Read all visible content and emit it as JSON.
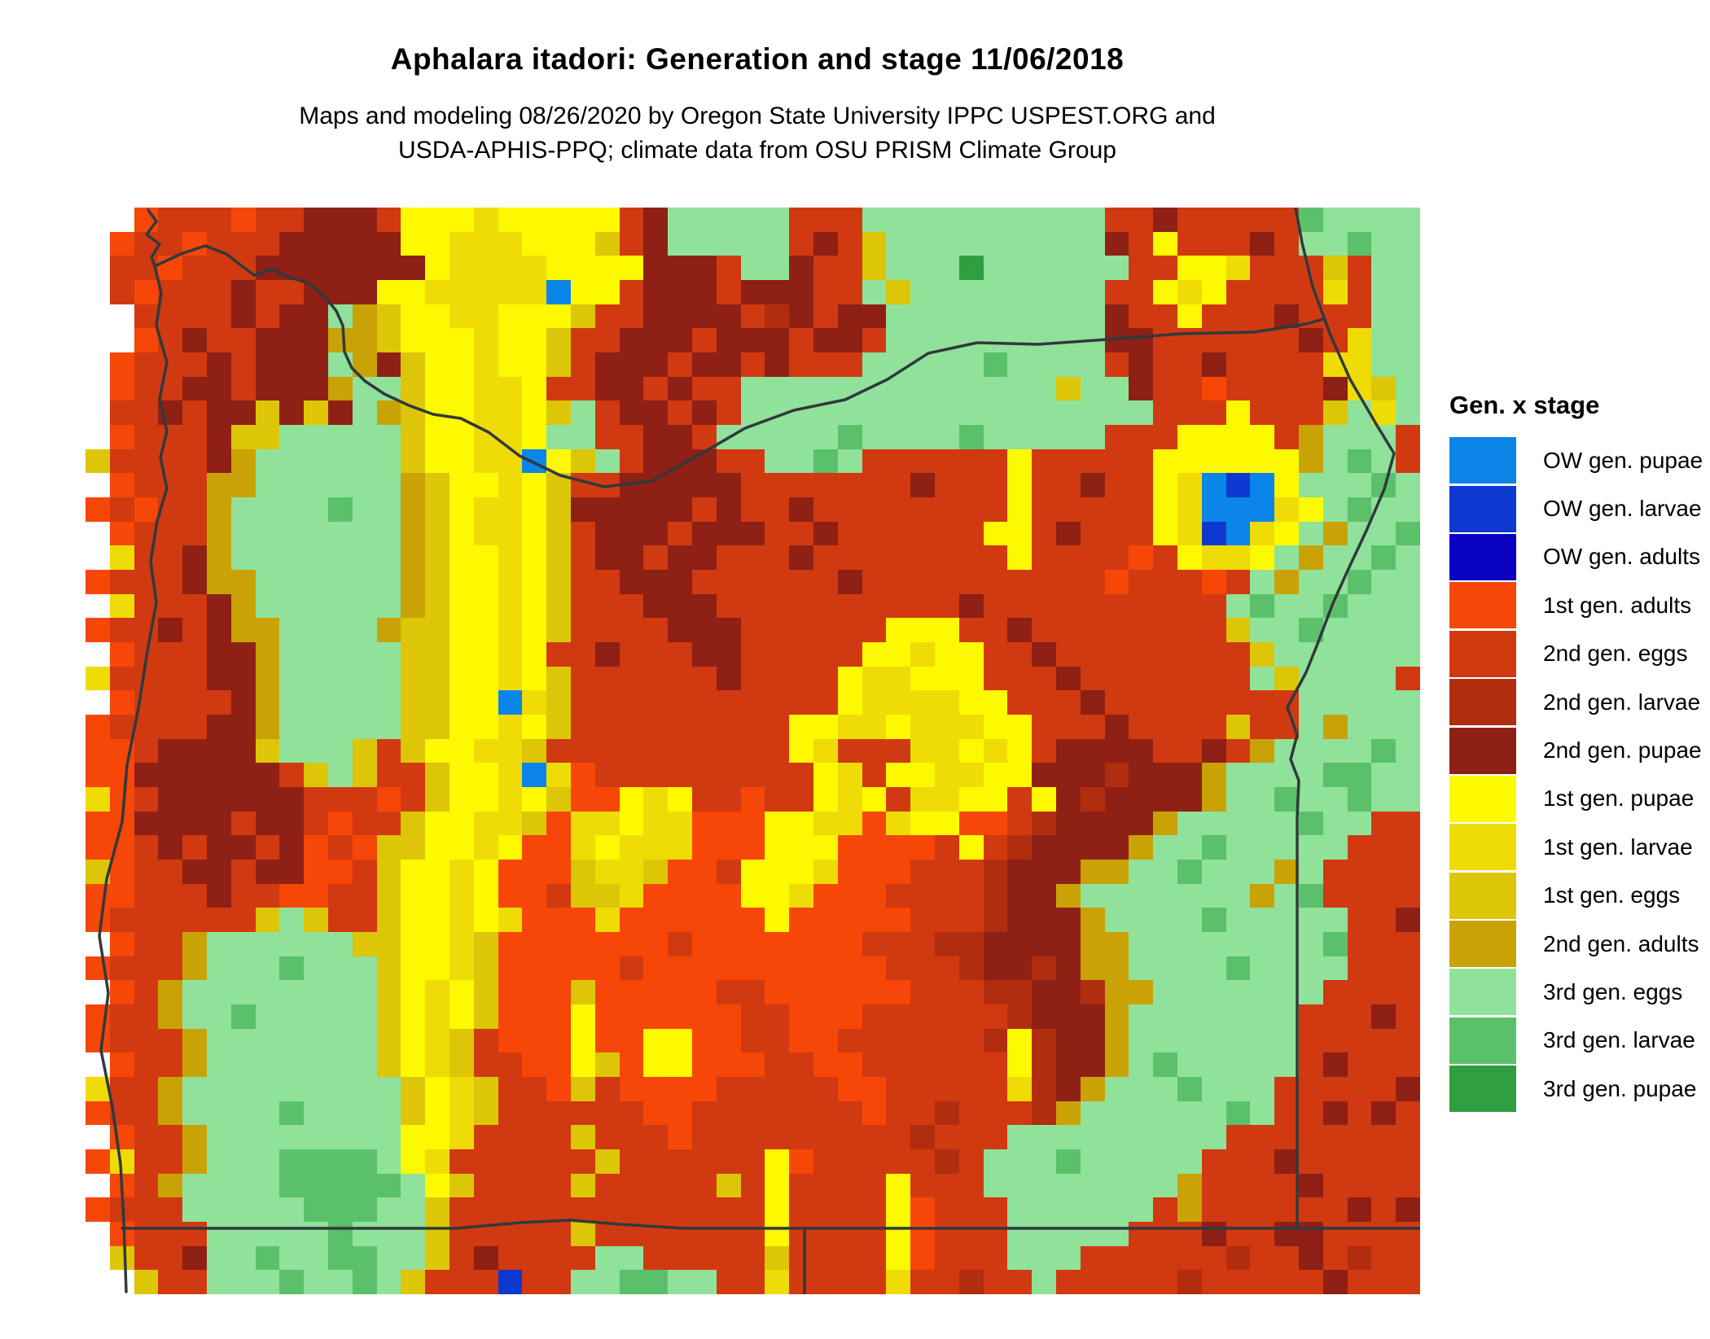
{
  "figure": {
    "title": "Aphalara itadori: Generation and stage 11/06/2018",
    "subtitle_line1": "Maps and modeling 08/26/2020 by Oregon State University IPPC USPEST.ORG and",
    "subtitle_line2": "USDA-APHIS-PPQ; climate data from OSU PRISM Climate Group"
  },
  "legend": {
    "title": "Gen. x stage",
    "items": [
      {
        "label": "OW gen. pupae",
        "code": "b"
      },
      {
        "label": "OW gen. larvae",
        "code": "B"
      },
      {
        "label": "OW gen. adults",
        "code": "N"
      },
      {
        "label": "1st gen. adults",
        "code": "o"
      },
      {
        "label": "2nd gen. eggs",
        "code": "e"
      },
      {
        "label": "2nd gen. larvae",
        "code": "r"
      },
      {
        "label": "2nd gen. pupae",
        "code": "d"
      },
      {
        "label": "1st gen. pupae",
        "code": "Y"
      },
      {
        "label": "1st gen. larvae",
        "code": "y"
      },
      {
        "label": "1st gen. eggs",
        "code": "g"
      },
      {
        "label": "2nd gen. adults",
        "code": "G"
      },
      {
        "label": "3rd gen. eggs",
        "code": "E"
      },
      {
        "label": "3rd gen. larvae",
        "code": "V"
      },
      {
        "label": "3rd gen. pupae",
        "code": "D"
      }
    ]
  },
  "map": {
    "palette": {
      "b": "#0c85e9",
      "B": "#0c3ad0",
      "N": "#0a02c2",
      "o": "#f64708",
      "e": "#d13910",
      "r": "#b12d10",
      "d": "#8e2015",
      "Y": "#fdf900",
      "y": "#efdc06",
      "g": "#dcc607",
      "G": "#c9a306",
      "E": "#90e29b",
      "V": "#5bc06a",
      "D": "#2f9e40",
      "W": "#ffffff"
    },
    "grid_cols": 55,
    "grid_rows": 45,
    "grid": [
      "WWoeeeoeedddeYYYyYYYYYedEEEEEeeeEEEEEEEEEEeedeeeeeVEEEE",
      "WoeeoeeedddddYYyyyYYYgedEEEEEedegEEEEEEEEEdeYeeedeEEVEE",
      "WeeoeeedddddddYyyyyYYYYdddeEEdeegEEEDEEEEEEeeYYyeeegeEEE",
      "WeoeeedeedddYYyyyyybYYedddedddeeEgEEEEEEEEeeYyYeeeeyeEE",
      "WWeeeededdEGgYYyyYYYgeeddddardeddEEEEEEEEEdeeYeeedeeeEE",
      "WWoedeedddGGgYYYyYYgeedddedddaddeEEEEEEEEEddeeeeeedeyEE",
      "WoeeededddEGdgYYyYYgedddeddedeeeEEEEEVEEEEedeedeeeeyyEE",
      "WoeeddedddGEEgYYyyYeaddedeeEEEEEEEEEEEEEgEEdeeoeeeedygEE",
      "WeededdgdgdEGgYYyyYgEeddedeEEEEEEEEEEEEEEEEEeeeYeeegEyEE",
      "WoeeedggEEEEEgYYyyYEEeeddeEEEEEVEEEEVEEEEEeeeYYYYeGEEEe",
      "geeeedGEEEEEEgYYyybYgEedddeeEEVEeeeeeeYeeeeeYYYYYYGEVEe",
      "WoeeeGGEEEEEEGgYYyYgeedddddeeeeeeedeeeYeedeeYybBbYEEEVE",
      "oeoeeGEEEEVEEGgYyyYgdddddedeedeeeeeeeeYeeeeeYybbbyYEVEE",
      "WoeeeGEEEEEEEGgYyyYgedddedddeedeeeeeeYYedeeeYyBbyYEGEEV",
      "WyeedGEEEEEEEGgYYyYgeddeddeeedeeeeeeeeYeeeeoeYyyYEGEEVE",
      "oeeedGGEEEEEEGgYYyYgeedddeeeeeedeeeeeeeeeeoeeeoeEGEEVEE",
      "WyeeedGEEEEEEGgYYyYgeeedddeeeeeeeeeedeeeeeeeeeeEVEEVEEE",
      "oeededGGEEEEGggYYyYgeeeedddeeeeeeYYYeedeeeeeeeegEEVEEEE",
      "WoeeeddGEEEEEggYYyYeedeeeddeeeeeYYyYYeedeeeeeeeegEEEEEE",
      "yeeeeddGEEEEEggYYyYgeeeeeedeeeeYyyYYYeeedeeeeeeeEgEEEE",
      "WoeeeedGEEEEEggYYbygeeeeeeeeeeeYyyyyYYeeedeeeeeeeeEEEEE",
      "oeeeeddGEEEEEggYYyYgeeeeeeeeeYYyyYyyyYYeeedeeeegeeEGEEE",
      "ooeddddgEEEgegYYyygeeeeeeeeeeYyeeeyyYyYedddd edeGEEEEVEE",
      "oodddddd gEgeegYYybyoeeeeeeeeeYyeYYyyYYdddrdddGEEEEVVEE",
      "yoedddddd eeoegYYyYgooYyYeeoeeYyYeyyYYeYdrddddGEEVEEVEEe",
      "ooddddeddeoeegYYyygoyyYyyoooYYyyoyYYooerddddGEEEEEVEEee",
      "ooededdedoeoggYYyYooyYyyyoooYYYooooeYerddddGEEVEEEEEeee",
      "goeeddeddooegYYyYooogyygooeYYYyoooeeerdddGGEEVEEEGEeeee",
      "ooeeedeeooeegYYyYooeggyooooYYyoooeeeerddGEEEEEEEGEVeeee",
      "oeeeeeegEgeegYYyYyoooyooooooYoooooeeerdddGEEEEVEEEEEeede",
      "WoeeGEEEEEEggYYygoooooooeoooooooeeerrddddGGEEEEEEEEVeee",
      "oeeeGEEEVEEEgYYygoooooeooooooooooeeerddrdGGEEEEVEEEEeee",
      "WoeGEEEEEEEEgYyYgooogoooooeeooooooeeerrddrGGEEEEEEEeeeed",
      "oeeGEEVEEEEEgYyYgoooYooooooeeoooeeeeeerdddGEEEEEEEeeedee",
      "oeeeGEEEEEEEgYygeoooYooYYooeeooeeeeeerYrddGEEEEEEEeeeee",
      "WoeeGEEEEEEEgYygeeooYgoYYoooeeooeeeeeeYrddGEVEEEEEedeee",
      "yeeGEEEEEEEEEgYygeeogeooooeeeeeooeeeeeyrdGEEEVEEEeeeeed",
      "oeeGEEEEVEEEEgYygeeeeeeooeeeeeeeoeereeerGEEEEEEVEeedede",
      "WoeeGEEEEEEEEYYyeeeegeeeoeeeeeeeeereeeEEEEEEEEEeeeeeee",
      "oyeeGEEEVVVVEYyeeeeeegeeeeeeYoeeeeereEEEVEEEEEeeedeeeee",
      "WoeGEEEEVVVVVEYgeeeegeeeeegeYeeeeYeeeEEEEEEEEGeeeedeeee",
      "oeeeEEEEEVVVEEgeeeeeeeeeeeeeYeeeeYoeeeEEEEEEeGeeeeeeded",
      "WoeeeEEEEEVEEEgeeeeegeeeeeeeYeeeeYoeeeEEEEEeeedeedd eeee",
      "WgeedEEVEEVVEEgedeeeeEEeeeeegeeeeYoeeeEEEeeeeeereederee",
      "WWgeeEEEVEEVEgeeeBeeEEVVEEeeyeeeeyeereeEeeeeereeeeedeee"
    ],
    "borders": {
      "stroke": "#30393d",
      "stroke_width": 3.5,
      "polylines": {
        "coastline": "182,258 192,272 180,288 196,300 186,316 190,327 198,360 192,400 205,445 196,490 205,530 197,562 205,600 193,640 185,690 192,740 181,800 170,870 156,940 150,1010 131,1080 122,1150 133,1220 124,1290 138,1360 148,1430 152,1500 155,1587",
        "columbia_wa_or": "190,327 222,312 252,302 278,312 296,326 312,338 333,331 356,341 380,348 400,366 413,382 421,400 423,432 432,452 448,468 472,484 502,498 532,509 566,514 600,531 638,560 688,584 742,598 800,591 855,561 915,526 975,504 1038,491 1090,466 1140,434 1200,421 1275,423 1360,417 1450,410 1540,408 1604,398 1625,392",
        "snake_or_id": "1591,255 1599,298 1612,352 1634,412 1658,466 1690,521 1712,557 1700,601 1678,652 1655,701 1637,741 1618,791 1604,826 1581,869 1593,903 1585,933 1595,959 1593,1005 1593,1509",
        "south_42n": "150,1509 560,1509 640,1502 700,1499 760,1504 840,1509 1745,1509",
        "ca_nv": "988,1509 988,1590"
      }
    }
  },
  "colors": {
    "background": "#ffffff",
    "text": "#000000"
  }
}
